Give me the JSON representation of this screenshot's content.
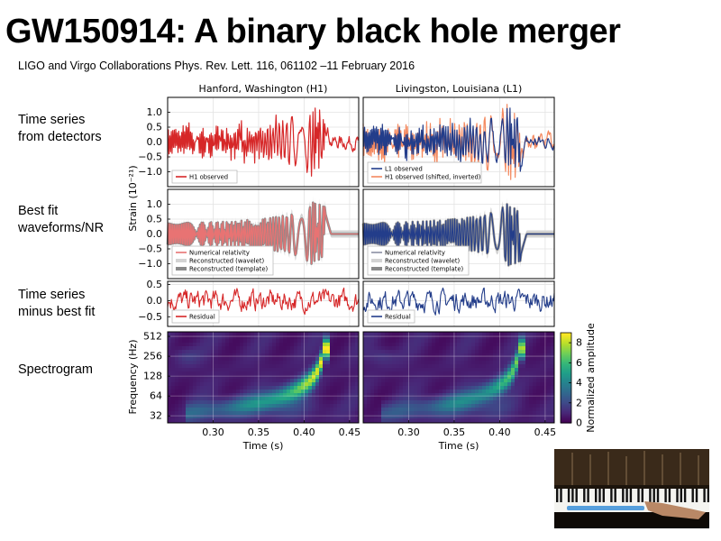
{
  "slide": {
    "title": "GW150914: A binary black hole merger",
    "subtitle": "LIGO and Virgo Collaborations Phys. Rev. Lett. 116, 061102 –11 February 2016",
    "row_labels": [
      [
        "Time series",
        "from detectors"
      ],
      [
        "Best fit",
        "waveforms/NR"
      ],
      [
        "Time series",
        "minus best fit"
      ],
      [
        "Spectrogram"
      ]
    ]
  },
  "colors": {
    "h1": "#d62728",
    "l1": "#233d8a",
    "h1_shifted": "#f4895f",
    "nr": "#e87373",
    "nr_l1": "#8a90a4",
    "wavelet": "#d3d3d3",
    "template": "#8a8a8a"
  },
  "chart_data": [
    {
      "type": "line",
      "panel": "H1 time series",
      "title": "Hanford, Washington (H1)",
      "ylabel": "Strain (10⁻²¹)",
      "ylim": [
        -1.5,
        1.5
      ],
      "xlim": [
        0.25,
        0.46
      ],
      "yticks": [
        "1.0",
        "0.5",
        "0.0",
        "−0.5",
        "−1.0"
      ],
      "series": [
        {
          "name": "H1 observed",
          "x": [
            0.26,
            0.3,
            0.34,
            0.38,
            0.41,
            0.42,
            0.45
          ],
          "y": [
            0.1,
            -0.3,
            0.3,
            -0.6,
            1.0,
            -1.2,
            0.2
          ]
        }
      ],
      "grid": true,
      "legend": "lower-left"
    },
    {
      "type": "line",
      "panel": "L1 time series",
      "title": "Livingston, Louisiana (L1)",
      "ylim": [
        -1.5,
        1.5
      ],
      "xlim": [
        0.25,
        0.46
      ],
      "series": [
        {
          "name": "L1 observed",
          "x": [
            0.26,
            0.3,
            0.34,
            0.38,
            0.41,
            0.42,
            0.45
          ],
          "y": [
            0.0,
            0.2,
            -0.3,
            0.6,
            -1.0,
            1.0,
            -0.1
          ]
        },
        {
          "name": "H1 observed (shifted, inverted)",
          "x": [
            0.26,
            0.3,
            0.34,
            0.38,
            0.41,
            0.42,
            0.45
          ],
          "y": [
            0.1,
            0.3,
            -0.4,
            0.7,
            -1.2,
            1.1,
            0.2
          ]
        }
      ],
      "grid": true,
      "legend": "lower-left"
    },
    {
      "type": "line",
      "panel": "H1 best fit",
      "ylim": [
        -1.5,
        1.5
      ],
      "xlim": [
        0.25,
        0.46
      ],
      "yticks": [
        "1.0",
        "0.5",
        "0.0",
        "−0.5",
        "−1.0"
      ],
      "series": [
        {
          "name": "Numerical relativity",
          "x": [
            0.26,
            0.35,
            0.4,
            0.42,
            0.43
          ],
          "y": [
            0.0,
            0.3,
            -0.9,
            1.2,
            0.0
          ]
        },
        {
          "name": "Reconstructed (wavelet)"
        },
        {
          "name": "Reconstructed (template)"
        }
      ],
      "grid": true,
      "legend": "lower-left"
    },
    {
      "type": "line",
      "panel": "L1 best fit",
      "ylim": [
        -1.5,
        1.5
      ],
      "xlim": [
        0.25,
        0.46
      ],
      "series": [
        {
          "name": "Numerical relativity",
          "x": [
            0.26,
            0.35,
            0.4,
            0.42,
            0.43
          ],
          "y": [
            0.0,
            -0.3,
            0.9,
            -1.2,
            0.0
          ]
        },
        {
          "name": "Reconstructed (wavelet)"
        },
        {
          "name": "Reconstructed (template)"
        }
      ],
      "grid": true,
      "legend": "lower-left"
    },
    {
      "type": "line",
      "panel": "H1 residual",
      "ylim": [
        -0.8,
        0.6
      ],
      "xlim": [
        0.25,
        0.46
      ],
      "yticks": [
        "0.5",
        "0.0",
        "−0.5"
      ],
      "series": [
        {
          "name": "Residual"
        }
      ],
      "grid": true,
      "legend": "lower-left"
    },
    {
      "type": "line",
      "panel": "L1 residual",
      "ylim": [
        -0.8,
        0.6
      ],
      "xlim": [
        0.25,
        0.46
      ],
      "series": [
        {
          "name": "Residual"
        }
      ],
      "grid": true,
      "legend": "lower-left"
    },
    {
      "type": "heatmap",
      "panel": "H1 spectrogram",
      "xlabel": "Time (s)",
      "ylabel": "Frequency (Hz)",
      "yscale": "log2",
      "ylim": [
        25,
        600
      ],
      "xlim": [
        0.25,
        0.46
      ],
      "yticks": [
        "512",
        "256",
        "128",
        "64",
        "32"
      ],
      "xticks": [
        "0.30",
        "0.35",
        "0.40",
        "0.45"
      ],
      "chirp": {
        "t": [
          0.3,
          0.38,
          0.41,
          0.425
        ],
        "f": [
          35,
          60,
          120,
          250
        ]
      },
      "peak_amplitude": 8.5
    },
    {
      "type": "heatmap",
      "panel": "L1 spectrogram",
      "xlabel": "Time (s)",
      "yscale": "log2",
      "ylim": [
        25,
        600
      ],
      "xlim": [
        0.25,
        0.46
      ],
      "xticks": [
        "0.30",
        "0.35",
        "0.40",
        "0.45"
      ],
      "chirp": {
        "t": [
          0.3,
          0.38,
          0.41,
          0.42
        ],
        "f": [
          35,
          60,
          110,
          200
        ]
      },
      "peak_amplitude": 6.5,
      "colorbar": {
        "label": "Normalized amplitude",
        "range": [
          0,
          9
        ],
        "ticks": [
          "8",
          "6",
          "4",
          "2",
          "0"
        ]
      }
    }
  ]
}
